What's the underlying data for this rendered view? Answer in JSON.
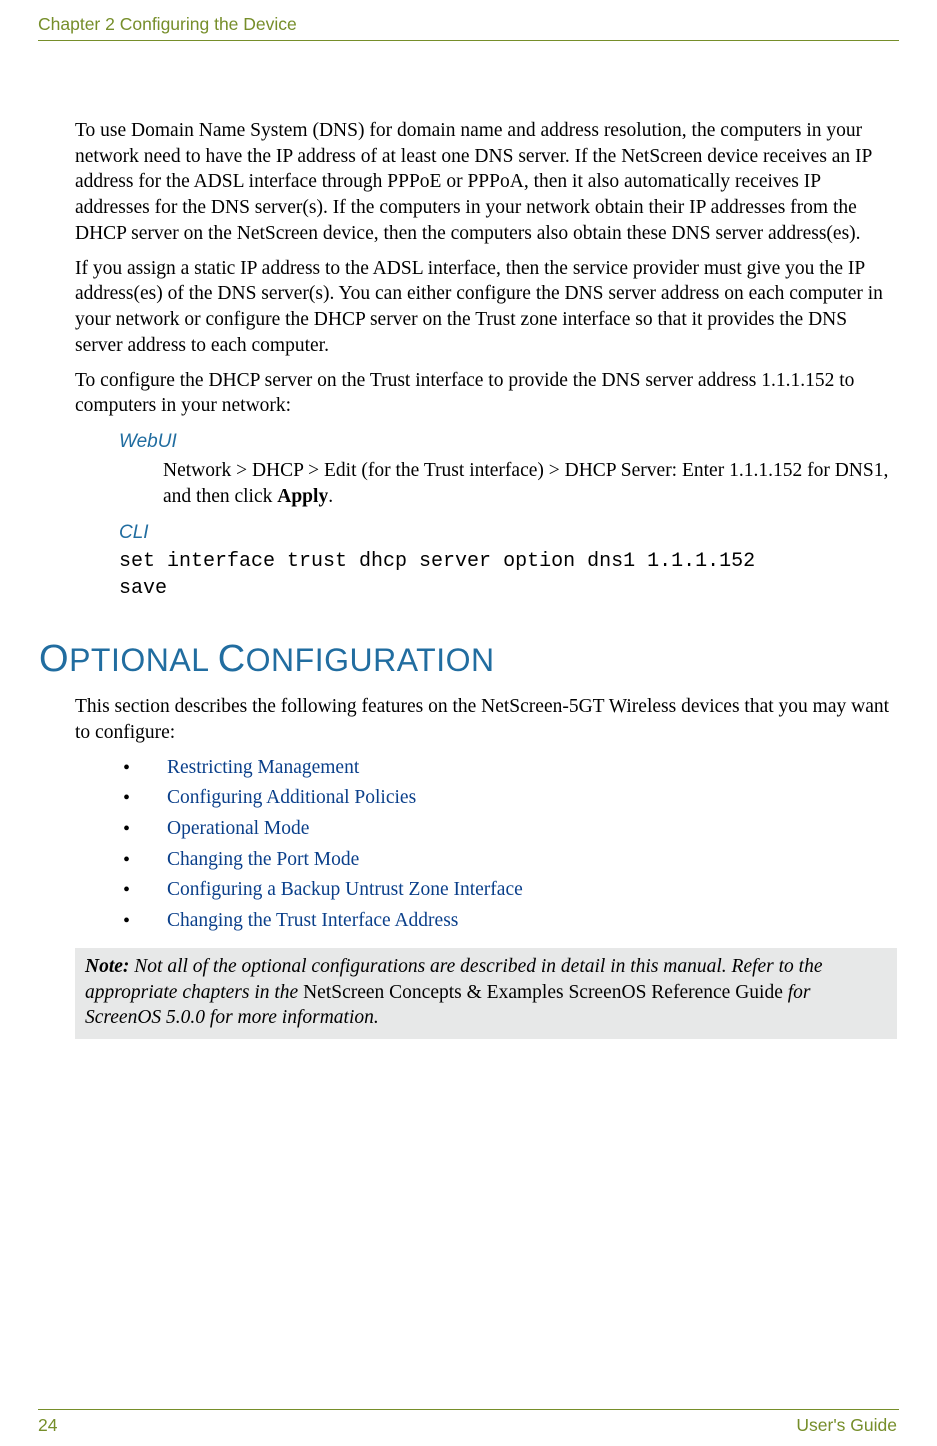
{
  "colors": {
    "accent_green": "#768e2a",
    "accent_blue": "#216da0",
    "link_blue": "#0a3f8a",
    "note_bg": "#e7e8e8",
    "text": "#000000",
    "page_bg": "#ffffff"
  },
  "typography": {
    "body_font": "Palatino Linotype serif",
    "body_size_pt": 14.5,
    "heading_font": "Arial sans-serif",
    "mono_font": "Courier New monospace"
  },
  "header": {
    "running_title": "Chapter 2 Configuring the Device"
  },
  "body": {
    "p1": "To use Domain Name System (DNS) for domain name and address resolution, the computers in your network need to have the IP address of at least one DNS server. If the NetScreen device receives an IP address for the ADSL interface through PPPoE or PPPoA, then it also automatically receives IP addresses for the DNS server(s). If the computers in your network obtain their IP addresses from the DHCP server on the NetScreen device, then the computers also obtain these DNS server address(es).",
    "p2": "If you assign a static IP address to the ADSL interface, then the service provider must give you the IP address(es) of the DNS server(s). You can either configure the DNS server address on each computer in your network or configure the DHCP server on the Trust zone interface so that it provides the DNS server address to each computer.",
    "p3": "To configure the DHCP server on the Trust interface to provide the DNS server address 1.1.1.152 to computers in your network:",
    "webui_label": "WebUI",
    "webui_text_pre": "Network > DHCP > Edit (for the Trust interface) > DHCP Server: Enter 1.1.1.152 for DNS1, and then click ",
    "webui_text_bold": "Apply",
    "webui_text_post": ".",
    "cli_label": "CLI",
    "cli_line1": "set interface trust dhcp server option dns1 1.1.1.152",
    "cli_line2": "save"
  },
  "section": {
    "heading_text": "Optional Configuration",
    "intro": "This section describes the following features on the NetScreen-5GT Wireless devices that you may want to configure:",
    "bullets": [
      "Restricting Management",
      "Configuring Additional Policies",
      "Operational Mode",
      "Changing the Port Mode",
      "Configuring a Backup Untrust Zone Interface",
      "Changing the Trust Interface Address"
    ],
    "note": {
      "lead": "Note:",
      "part1_italic": " Not all of the optional configurations are described in detail in this manual. Refer to the appropriate chapters in the ",
      "part2_roman": "NetScreen Concepts & Examples ScreenOS Reference Guide",
      "part3_italic": " for ScreenOS 5.0.0 for more information."
    }
  },
  "footer": {
    "page_number": "24",
    "guide_label": "User's Guide"
  }
}
